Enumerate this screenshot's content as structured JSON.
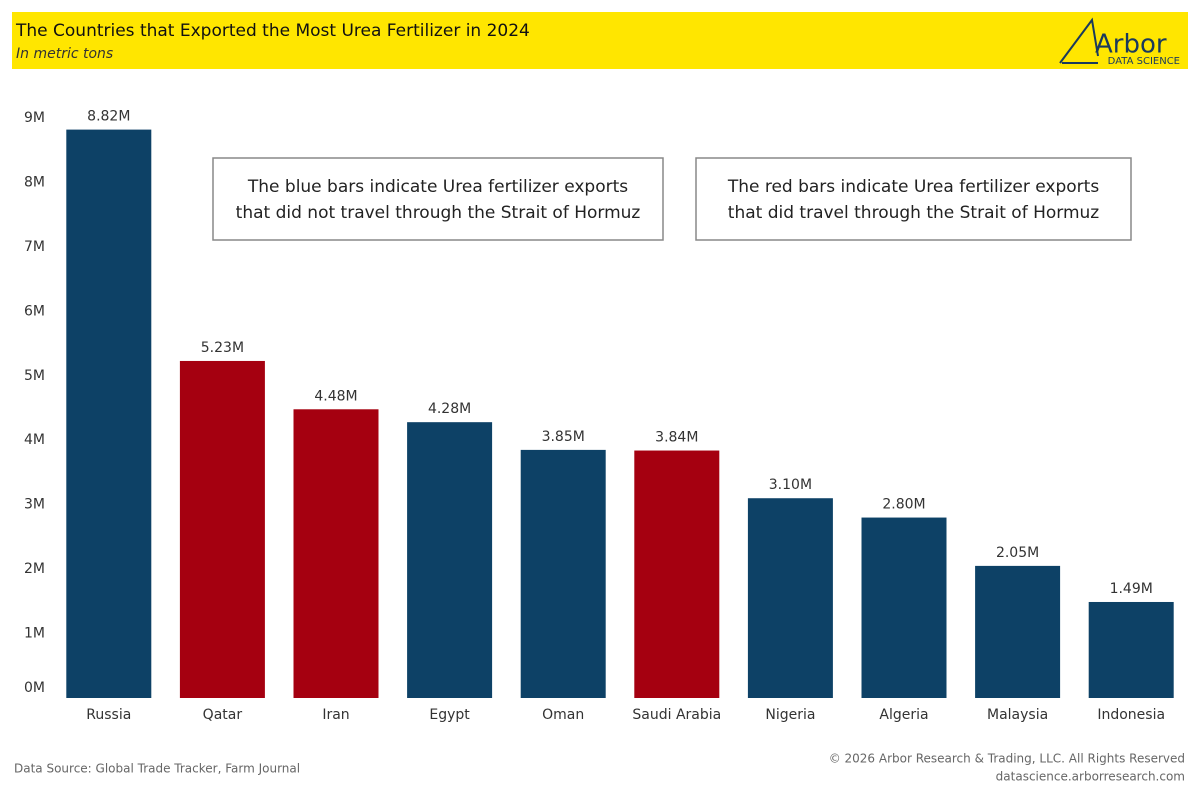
{
  "chart_data": {
    "type": "bar",
    "title": "The Countries that Exported the Most Urea Fertilizer in 2024",
    "subtitle": "In metric tons",
    "logo": {
      "name": "Arbor",
      "tagline": "DATA SCIENCE"
    },
    "categories": [
      "Russia",
      "Qatar",
      "Iran",
      "Egypt",
      "Oman",
      "Saudi Arabia",
      "Nigeria",
      "Algeria",
      "Malaysia",
      "Indonesia"
    ],
    "values": [
      8820000,
      5230000,
      4480000,
      4280000,
      3850000,
      3840000,
      3100000,
      2800000,
      2050000,
      1490000
    ],
    "value_labels": [
      "8.82M",
      "5.23M",
      "4.48M",
      "4.28M",
      "3.85M",
      "3.84M",
      "3.10M",
      "2.80M",
      "2.05M",
      "1.49M"
    ],
    "colors": [
      "#0d4166",
      "#a50010",
      "#a50010",
      "#0d4166",
      "#0d4166",
      "#a50010",
      "#0d4166",
      "#0d4166",
      "#0d4166",
      "#0d4166"
    ],
    "ylim": [
      0,
      9000000
    ],
    "yticks": [
      {
        "value": 0,
        "label": "0M"
      },
      {
        "value": 1000000,
        "label": "1M"
      },
      {
        "value": 2000000,
        "label": "2M"
      },
      {
        "value": 3000000,
        "label": "3M"
      },
      {
        "value": 4000000,
        "label": "4M"
      },
      {
        "value": 5000000,
        "label": "5M"
      },
      {
        "value": 6000000,
        "label": "6M"
      },
      {
        "value": 7000000,
        "label": "7M"
      },
      {
        "value": 8000000,
        "label": "8M"
      },
      {
        "value": 9000000,
        "label": "9M"
      }
    ],
    "grid": false,
    "annotations": [
      {
        "lines": [
          "The blue bars indicate Urea fertilizer exports",
          "that did not travel through the Strait of Hormuz"
        ]
      },
      {
        "lines": [
          "The red bars indicate Urea fertilizer exports",
          "that did travel through the Strait of Hormuz"
        ]
      }
    ],
    "source": "Data Source: Global Trade Tracker, Farm Journal",
    "copyright": "© 2026 Arbor Research & Trading, LLC. All Rights Reserved",
    "website": "datascience.arborresearch.com"
  }
}
